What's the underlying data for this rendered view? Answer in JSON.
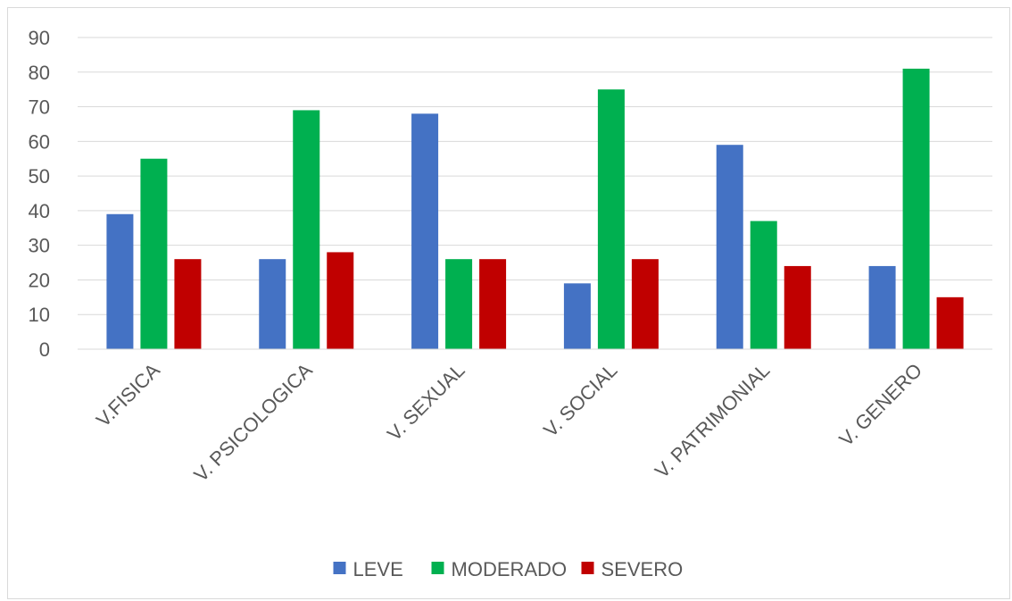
{
  "chart_data": {
    "type": "bar",
    "categories": [
      "V.FISICA",
      "V. PSICOLOGICA",
      "V. SEXUAL",
      "V. SOCIAL",
      "V. PATRIMONIAL",
      "V. GENERO"
    ],
    "series": [
      {
        "name": "LEVE",
        "color": "#4472c4",
        "values": [
          39,
          26,
          68,
          19,
          59,
          24
        ]
      },
      {
        "name": "MODERADO",
        "color": "#00b050",
        "values": [
          55,
          69,
          26,
          75,
          37,
          81
        ]
      },
      {
        "name": "SEVERO",
        "color": "#c00000",
        "values": [
          26,
          28,
          26,
          26,
          24,
          15
        ]
      }
    ],
    "yticks": [
      0,
      10,
      20,
      30,
      40,
      50,
      60,
      70,
      80,
      90
    ],
    "ylim": [
      0,
      90
    ],
    "grid": true,
    "legend": "bottom"
  }
}
